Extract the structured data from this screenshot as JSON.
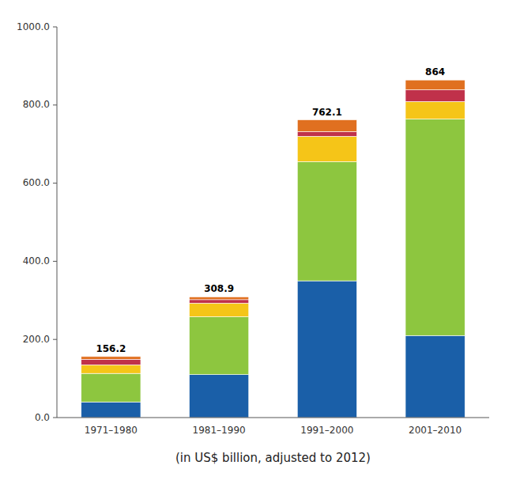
{
  "chart_data": {
    "type": "bar",
    "stacked": true,
    "categories": [
      "1971–1980",
      "1981–1990",
      "1991–2000",
      "2001–2010"
    ],
    "series": [
      {
        "color": "#1a5fa8",
        "values": [
          40.0,
          110.0,
          350.0,
          210.0
        ]
      },
      {
        "color": "#8dc63f",
        "values": [
          73.0,
          148.0,
          305.0,
          554.0
        ]
      },
      {
        "color": "#f5c518",
        "values": [
          22.0,
          35.0,
          65.0,
          45.0
        ]
      },
      {
        "color": "#c0314a",
        "values": [
          14.2,
          8.9,
          12.0,
          30.0
        ]
      },
      {
        "color": "#e07020",
        "values": [
          7.0,
          7.0,
          30.1,
          25.0
        ]
      }
    ],
    "totals": [
      156.2,
      308.9,
      762.1,
      864.0
    ],
    "x_label": "(in US$ billion, adjusted to 2012)",
    "ylim": [
      0,
      1000
    ],
    "yticks": [
      {
        "value": 0,
        "label": "0.0"
      },
      {
        "value": 200,
        "label": "200.0"
      },
      {
        "value": 400,
        "label": "400.0"
      },
      {
        "value": 600,
        "label": "600.0"
      },
      {
        "value": 800,
        "label": "800.0"
      },
      {
        "value": 1000,
        "label": "1000.0"
      }
    ],
    "grid": false
  }
}
